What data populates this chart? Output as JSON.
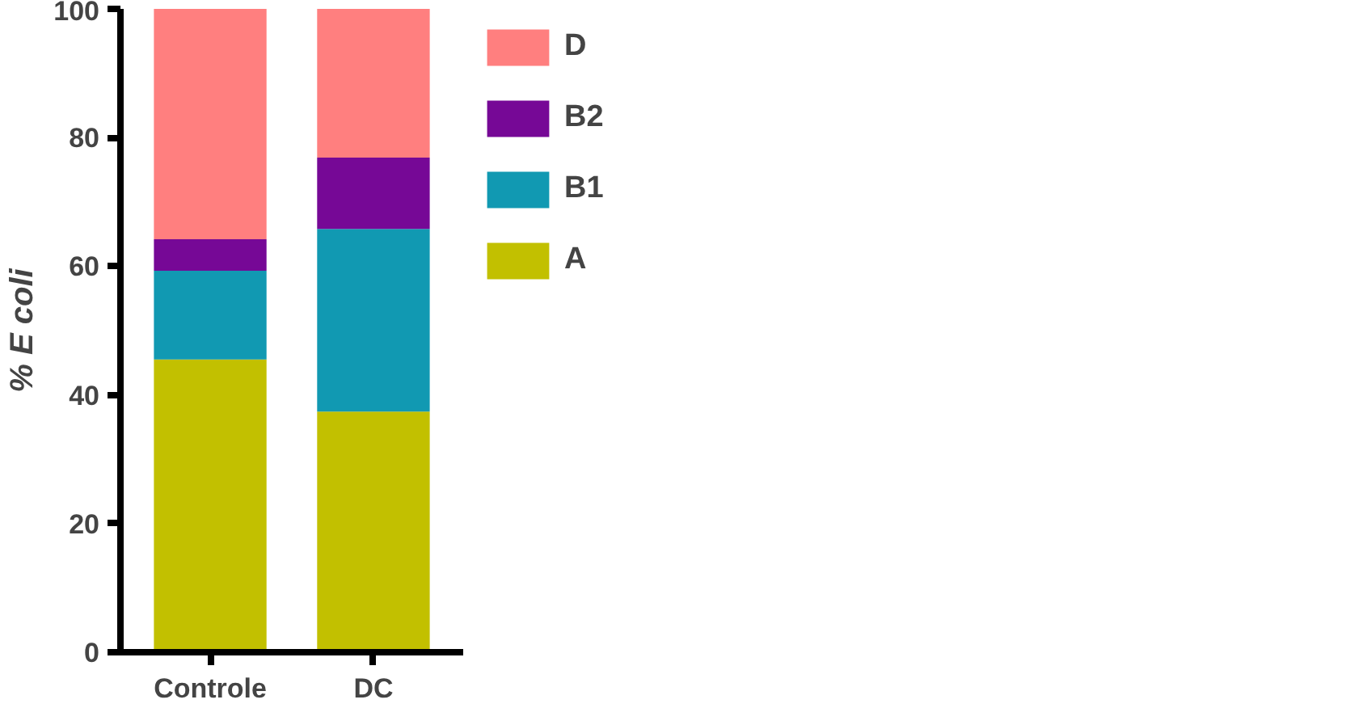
{
  "chart_data": {
    "type": "bar",
    "stacked": true,
    "ylabel": "% E coli",
    "categories": [
      "Controle",
      "DC"
    ],
    "series": [
      {
        "name": "A",
        "color": "#c2c000",
        "values": [
          45.5,
          37.4
        ]
      },
      {
        "name": "B1",
        "color": "#1199b2",
        "values": [
          13.8,
          28.4
        ]
      },
      {
        "name": "B2",
        "color": "#760896",
        "values": [
          4.9,
          11.1
        ]
      },
      {
        "name": "D",
        "color": "#ff7f7f",
        "values": [
          35.8,
          23.1
        ]
      }
    ],
    "ylim": [
      0,
      100
    ],
    "yticks": [
      0,
      20,
      40,
      60,
      80,
      100
    ],
    "grid": false,
    "legend": "right"
  }
}
